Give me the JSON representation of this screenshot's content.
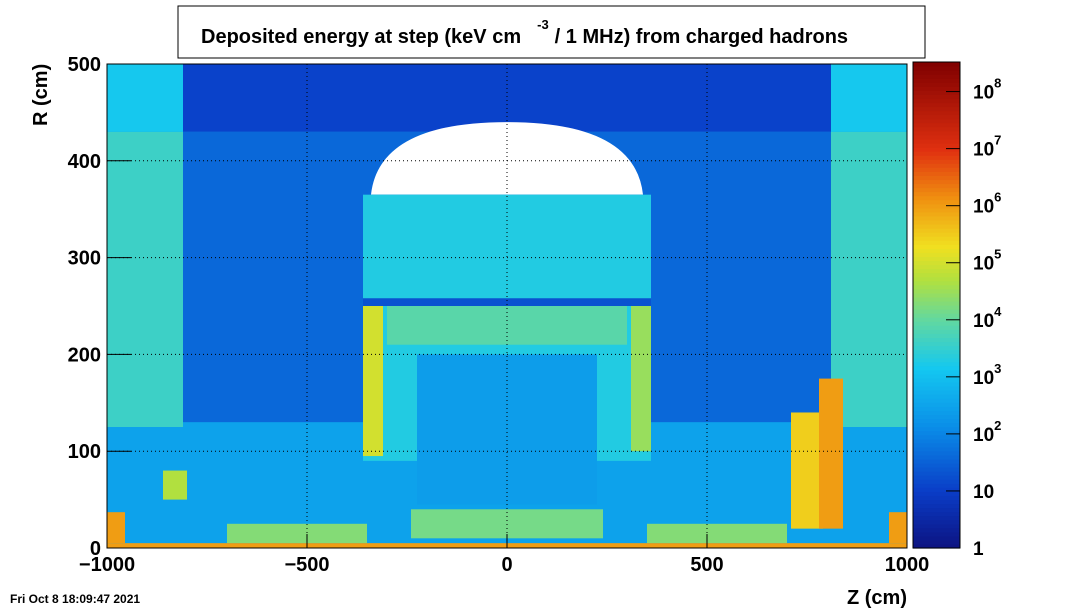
{
  "chart_data": {
    "type": "heatmap",
    "title": "Deposited energy at step (keV cm",
    "title_superscript": "-3",
    "title_end": "/ 1 MHz)  from   charged hadrons",
    "x_label": "Z (cm)",
    "y_label": "R (cm)",
    "timestamp": "Fri Oct  8 18:09:47 2021",
    "xlim": [
      -1000,
      1000
    ],
    "xticks": [
      {
        "value": -1000,
        "label": "−1000"
      },
      {
        "value": -500,
        "label": "−500"
      },
      0,
      500,
      1000
    ],
    "ylim": [
      0,
      500
    ],
    "yticks": [
      0,
      100,
      200,
      300,
      400,
      500
    ],
    "grid": true,
    "zlog": true,
    "zlim": [
      1,
      330000000
    ],
    "zticks": [
      1,
      10,
      {
        "value": 100,
        "label": "10",
        "exponent": "2"
      },
      {
        "value": 1000,
        "label": "10",
        "exponent": "3"
      },
      {
        "value": 10000,
        "label": "10",
        "exponent": "4"
      },
      {
        "value": 100000,
        "label": "10",
        "exponent": "5"
      },
      {
        "value": 1000000,
        "label": "10",
        "exponent": "6"
      },
      {
        "value": 10000000,
        "label": "10",
        "exponent": "7"
      },
      {
        "value": 100000000,
        "label": "10",
        "exponent": "8"
      }
    ],
    "regions": [
      {
        "z": [
          -1000,
          1000
        ],
        "r": [
          0,
          500
        ],
        "value": 300
      },
      {
        "z": [
          -810,
          810
        ],
        "r": [
          130,
          430
        ],
        "value": 40
      },
      {
        "z": [
          -810,
          810
        ],
        "r": [
          430,
          500
        ],
        "value": 12
      },
      {
        "z": [
          -1000,
          -810
        ],
        "r": [
          125,
          430
        ],
        "value": 4000
      },
      {
        "z": [
          810,
          1000
        ],
        "r": [
          125,
          430
        ],
        "value": 4000
      },
      {
        "z": [
          -1000,
          -810
        ],
        "r": [
          430,
          500
        ],
        "value": 1500
      },
      {
        "z": [
          810,
          1000
        ],
        "r": [
          430,
          500
        ],
        "value": 1500
      },
      {
        "z": [
          -360,
          360
        ],
        "r": [
          90,
          365
        ],
        "value": 2000
      },
      {
        "z": [
          -225,
          225
        ],
        "r": [
          45,
          200
        ],
        "value": 250
      },
      {
        "z": [
          -300,
          300
        ],
        "r": [
          210,
          250
        ],
        "value": 8000
      },
      {
        "z": [
          -360,
          360
        ],
        "r": [
          250,
          258
        ],
        "value": 20
      },
      {
        "z": [
          -360,
          -310
        ],
        "r": [
          95,
          250
        ],
        "value": 100000
      },
      {
        "z": [
          310,
          360
        ],
        "r": [
          100,
          250
        ],
        "value": 30000
      },
      {
        "z": [
          710,
          790
        ],
        "r": [
          20,
          140
        ],
        "value": 300000
      },
      {
        "z": [
          780,
          840
        ],
        "r": [
          20,
          175
        ],
        "value": 1000000
      },
      {
        "z": [
          -860,
          -800
        ],
        "r": [
          50,
          80
        ],
        "value": 50000
      },
      {
        "z": [
          -1000,
          -955
        ],
        "r": [
          5,
          37
        ],
        "value": 1000000
      },
      {
        "z": [
          955,
          1000
        ],
        "r": [
          5,
          37
        ],
        "value": 1000000
      },
      {
        "z": [
          -700,
          -350
        ],
        "r": [
          5,
          25
        ],
        "value": 20000
      },
      {
        "z": [
          350,
          700
        ],
        "r": [
          5,
          25
        ],
        "value": 20000
      },
      {
        "z": [
          -240,
          240
        ],
        "r": [
          10,
          40
        ],
        "value": 15000
      },
      {
        "z": [
          -1000,
          1000
        ],
        "r": [
          0,
          5
        ],
        "value": 1000000
      }
    ]
  }
}
